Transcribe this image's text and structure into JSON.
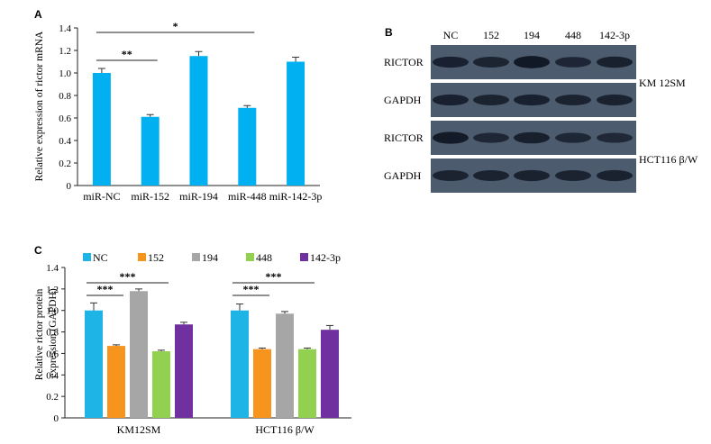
{
  "panels": {
    "a": {
      "letter": "A"
    },
    "b": {
      "letter": "B"
    },
    "c": {
      "letter": "C"
    }
  },
  "chart_data": [
    {
      "type": "bar",
      "panel": "A",
      "ylabel": "Relative expression of rictor mRNA",
      "ylim": [
        0,
        1.4
      ],
      "yticks": [
        "0",
        "0.2",
        "0.4",
        "0.6",
        "0.8",
        "1.0",
        "1.2",
        "1.4"
      ],
      "categories": [
        "miR-NC",
        "miR-152",
        "miR-194",
        "miR-448",
        "miR-142-3p"
      ],
      "values": [
        1.0,
        0.61,
        1.15,
        0.69,
        1.1
      ],
      "errors": [
        0.04,
        0.02,
        0.04,
        0.02,
        0.04
      ],
      "color": "#00b0f0",
      "significance": [
        {
          "label": "**",
          "from": 0,
          "to": 1
        },
        {
          "label": "*",
          "from": 0,
          "to": 3
        }
      ]
    },
    {
      "type": "bar",
      "panel": "C",
      "ylabel_lines": [
        "Relative rictor protein",
        "expression (GAPDH)"
      ],
      "ylim": [
        0,
        1.4
      ],
      "yticks": [
        "0",
        "0.2",
        "0.4",
        "0.6",
        "0.8",
        "1.0",
        "1.2",
        "1.4"
      ],
      "groups": [
        "KM12SM",
        "HCT116 β/W"
      ],
      "legend_position": "top",
      "series": [
        {
          "name": "NC",
          "color": "#1eb4e6",
          "values": [
            1.0,
            1.0
          ],
          "errors": [
            0.07,
            0.06
          ]
        },
        {
          "name": "152",
          "color": "#f7941d",
          "values": [
            0.67,
            0.64
          ],
          "errors": [
            0.01,
            0.01
          ]
        },
        {
          "name": "194",
          "color": "#a6a6a6",
          "values": [
            1.18,
            0.97
          ],
          "errors": [
            0.02,
            0.02
          ]
        },
        {
          "name": "448",
          "color": "#92d050",
          "values": [
            0.62,
            0.64
          ],
          "errors": [
            0.01,
            0.01
          ]
        },
        {
          "name": "142-3p",
          "color": "#7030a0",
          "values": [
            0.87,
            0.82
          ],
          "errors": [
            0.02,
            0.04
          ]
        }
      ],
      "significance": [
        {
          "group": 0,
          "label": "***",
          "from": 0,
          "to": 1
        },
        {
          "group": 0,
          "label": "***",
          "from": 0,
          "to": 3
        },
        {
          "group": 1,
          "label": "***",
          "from": 0,
          "to": 1
        },
        {
          "group": 1,
          "label": "***",
          "from": 0,
          "to": 3
        }
      ]
    }
  ],
  "blot": {
    "lanes": [
      "NC",
      "152",
      "194",
      "448",
      "142-3p"
    ],
    "rows": [
      {
        "label": "RICTOR",
        "intensity": [
          0.75,
          0.7,
          0.95,
          0.65,
          0.78
        ]
      },
      {
        "label": "GAPDH",
        "intensity": [
          0.75,
          0.72,
          0.75,
          0.72,
          0.74
        ]
      },
      {
        "label": "RICTOR",
        "intensity": [
          0.9,
          0.6,
          0.8,
          0.62,
          0.58
        ]
      },
      {
        "label": "GAPDH",
        "intensity": [
          0.72,
          0.72,
          0.74,
          0.72,
          0.74
        ]
      }
    ],
    "cell_lines": [
      "KM 12SM",
      "HCT116 β/W"
    ]
  }
}
